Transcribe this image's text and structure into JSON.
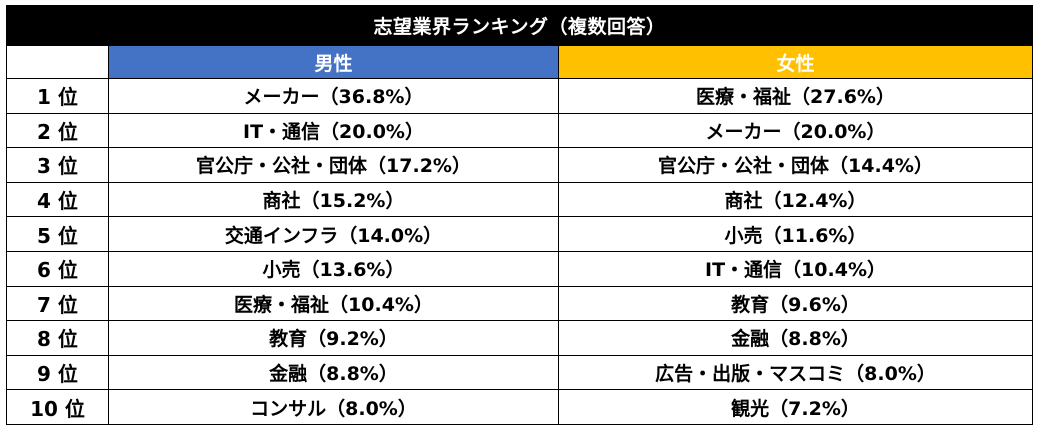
{
  "title": "志望業界ランキング（複数回答）",
  "colors": {
    "title_bg": "#000000",
    "male_header_bg": "#4472c4",
    "female_header_bg": "#ffc000"
  },
  "headers": {
    "rank": "",
    "male": "男性",
    "female": "女性"
  },
  "rows": [
    {
      "rank": "1 位",
      "male": "メーカー（36.8%）",
      "female": "医療・福祉（27.6%）"
    },
    {
      "rank": "2 位",
      "male": "IT・通信（20.0%）",
      "female": "メーカー（20.0%）"
    },
    {
      "rank": "3 位",
      "male": "官公庁・公社・団体（17.2%）",
      "female": "官公庁・公社・団体（14.4%）"
    },
    {
      "rank": "4 位",
      "male": "商社（15.2%）",
      "female": "商社（12.4%）"
    },
    {
      "rank": "5 位",
      "male": "交通インフラ（14.0%）",
      "female": "小売（11.6%）"
    },
    {
      "rank": "6 位",
      "male": "小売（13.6%）",
      "female": "IT・通信（10.4%）"
    },
    {
      "rank": "7 位",
      "male": "医療・福祉（10.4%）",
      "female": "教育（9.6%）"
    },
    {
      "rank": "8 位",
      "male": "教育（9.2%）",
      "female": "金融（8.8%）"
    },
    {
      "rank": "9 位",
      "male": "金融（8.8%）",
      "female": "広告・出版・マスコミ（8.0%）"
    },
    {
      "rank": "10 位",
      "male": "コンサル（8.0%）",
      "female": "観光（7.2%）"
    }
  ]
}
